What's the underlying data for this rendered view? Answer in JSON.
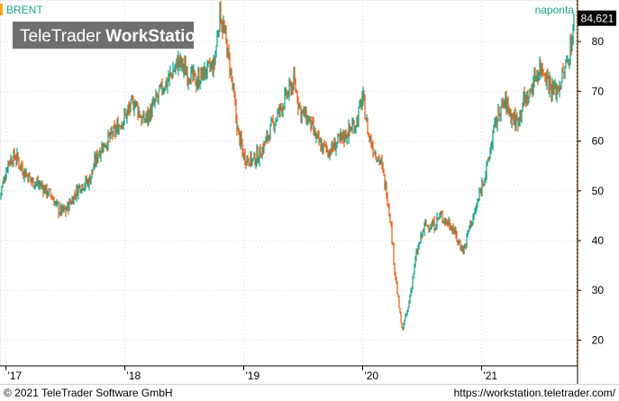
{
  "chart_data": {
    "type": "line",
    "style": "ohlc-bars",
    "title": "BRENT",
    "period_label": "naponta",
    "watermark": "TeleTrader WorkStation",
    "watermark_parts": [
      "TeleTrader",
      "WorkStation"
    ],
    "last_price_label": "84,621",
    "last_price": 84.621,
    "x_tick_labels": [
      "'17",
      "'18",
      "'19",
      "'20",
      "'21"
    ],
    "x_tick_years": [
      2017,
      2018,
      2019,
      2020,
      2021
    ],
    "xlim": [
      2016.95,
      2021.8
    ],
    "y_tick_labels": [
      "20",
      "30",
      "40",
      "50",
      "60",
      "70",
      "80"
    ],
    "y_ticks": [
      20,
      30,
      40,
      50,
      60,
      70,
      80
    ],
    "ylim": [
      15,
      88
    ],
    "up_color": "#1fa38a",
    "down_color": "#e8641e",
    "accent_color": "#f5a623",
    "grid": true,
    "series": [
      {
        "x": [
          2016.95,
          2017.02,
          2017.08,
          2017.15,
          2017.22,
          2017.3,
          2017.38,
          2017.45,
          2017.5,
          2017.55,
          2017.62,
          2017.7,
          2017.78,
          2017.85,
          2017.92,
          2018.0,
          2018.08,
          2018.15,
          2018.22,
          2018.3,
          2018.38,
          2018.45,
          2018.52,
          2018.6,
          2018.68,
          2018.75,
          2018.8,
          2018.85,
          2018.9,
          2018.95,
          2019.0,
          2019.08,
          2019.15,
          2019.22,
          2019.3,
          2019.38,
          2019.42,
          2019.48,
          2019.55,
          2019.6,
          2019.65,
          2019.72,
          2019.8,
          2019.88,
          2019.95,
          2020.0,
          2020.05,
          2020.1,
          2020.15,
          2020.2,
          2020.23,
          2020.27,
          2020.3,
          2020.33,
          2020.38,
          2020.45,
          2020.52,
          2020.6,
          2020.65,
          2020.7,
          2020.75,
          2020.8,
          2020.85,
          2020.9,
          2020.95,
          2021.0,
          2021.05,
          2021.1,
          2021.15,
          2021.2,
          2021.25,
          2021.3,
          2021.35,
          2021.4,
          2021.45,
          2021.5,
          2021.55,
          2021.6,
          2021.65,
          2021.7,
          2021.75,
          2021.78
        ],
        "values": [
          49,
          56,
          57,
          54,
          52,
          51,
          49,
          46,
          46,
          48,
          51,
          52,
          58,
          60,
          62,
          65,
          68,
          64,
          66,
          70,
          73,
          76,
          74,
          72,
          74,
          75,
          86,
          80,
          72,
          62,
          57,
          56,
          58,
          62,
          66,
          70,
          72,
          66,
          64,
          61,
          59,
          58,
          60,
          62,
          64,
          69,
          61,
          58,
          56,
          50,
          45,
          34,
          28,
          22,
          26,
          37,
          43,
          43,
          45,
          44,
          43,
          40,
          38,
          43,
          46,
          51,
          55,
          62,
          66,
          68,
          65,
          64,
          68,
          69,
          73,
          75,
          73,
          70,
          71,
          74,
          79,
          84.6
        ]
      }
    ]
  },
  "footer": {
    "copyright": "© 2021 TeleTrader Software GmbH",
    "url": "https://workstation.teletrader.com/"
  }
}
